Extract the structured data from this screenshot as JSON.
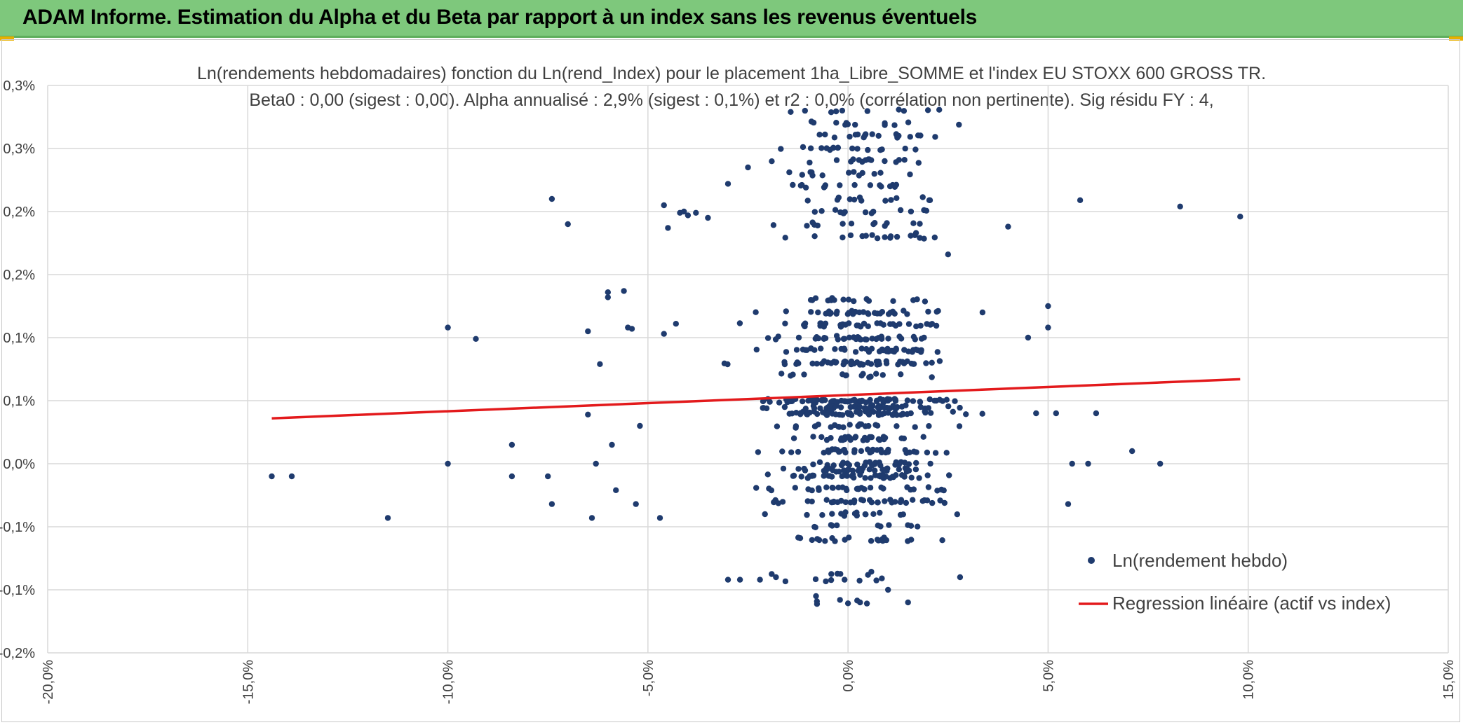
{
  "header": {
    "title": "ADAM Informe. Estimation du Alpha et du Beta par rapport à un index sans les revenus éventuels"
  },
  "colors": {
    "header_bg": "#7ec87c",
    "points": "#1f3b6e",
    "regression": "#e31a1c",
    "grid": "#d9d9d9",
    "text": "#404040"
  },
  "chart_data": {
    "type": "scatter",
    "title": [
      "Ln(rendements hebdomadaires) fonction du Ln(rend_Index) pour le placement 1ha_Libre_SOMME et l'index EU STOXX 600 GROSS TR.",
      "Beta0 : 0,00 (sigest : 0,00). Alpha annualisé : 2,9% (sigest : 0,1%) et r2 : 0,0% (corrélation non pertinente). Sig résidu FY : 4,"
    ],
    "xlabel": "",
    "ylabel": "",
    "xlim": [
      -0.2,
      0.15
    ],
    "ylim": [
      -0.0015,
      0.003
    ],
    "x_ticks": [
      {
        "value": -0.2,
        "label": "-20,0%"
      },
      {
        "value": -0.15,
        "label": "-15,0%"
      },
      {
        "value": -0.1,
        "label": "-10,0%"
      },
      {
        "value": -0.05,
        "label": "-5,0%"
      },
      {
        "value": 0.0,
        "label": "0,0%"
      },
      {
        "value": 0.05,
        "label": "5,0%"
      },
      {
        "value": 0.1,
        "label": "10,0%"
      },
      {
        "value": 0.15,
        "label": "15,0%"
      }
    ],
    "y_ticks": [
      {
        "value": 0.003,
        "label": "0,3%"
      },
      {
        "value": 0.0025,
        "label": "0,3%"
      },
      {
        "value": 0.002,
        "label": "0,2%"
      },
      {
        "value": 0.0015,
        "label": "0,2%"
      },
      {
        "value": 0.001,
        "label": "0,1%"
      },
      {
        "value": 0.0005,
        "label": "0,1%"
      },
      {
        "value": 0.0,
        "label": "0,0%"
      },
      {
        "value": -0.0005,
        "label": "-0,1%"
      },
      {
        "value": -0.001,
        "label": "-0,1%"
      },
      {
        "value": -0.0015,
        "label": "-0,2%"
      }
    ],
    "grid": true,
    "legend_position": "bottom-right",
    "series": [
      {
        "name": "Ln(rendement hebdo)",
        "type": "scatter",
        "levels": [
          -0.0011,
          -0.00092,
          -0.00087,
          -0.0006,
          -0.0005,
          -0.0004,
          -0.0003,
          -0.0002,
          -0.0001,
          -5e-05,
          0.0,
          0.0001,
          0.0002,
          0.0003,
          0.0004,
          0.00045,
          0.0005,
          0.0007,
          0.0008,
          0.0009,
          0.001,
          0.0011,
          0.0012,
          0.0013,
          0.0018,
          0.0019,
          0.002,
          0.0021,
          0.0022,
          0.0023,
          0.0024,
          0.0025,
          0.0026,
          0.0027,
          0.0028
        ],
        "points": [
          [
            -0.144,
            -0.0001
          ],
          [
            -0.139,
            -0.0001
          ],
          [
            -0.115,
            -0.00043
          ],
          [
            -0.1,
            0.0
          ],
          [
            -0.1,
            0.00108
          ],
          [
            -0.093,
            0.00099
          ],
          [
            -0.084,
            -0.0001
          ],
          [
            -0.084,
            0.00015
          ],
          [
            -0.075,
            -0.0001
          ],
          [
            -0.074,
            -0.00032
          ],
          [
            -0.074,
            0.0021
          ],
          [
            -0.07,
            0.0019
          ],
          [
            -0.065,
            0.00039
          ],
          [
            -0.065,
            0.00105
          ],
          [
            -0.064,
            -0.00043
          ],
          [
            -0.063,
            0.0
          ],
          [
            -0.062,
            0.00079
          ],
          [
            -0.06,
            0.00132
          ],
          [
            -0.06,
            0.00136
          ],
          [
            -0.059,
            0.00015
          ],
          [
            -0.058,
            -0.00021
          ],
          [
            -0.056,
            0.00137
          ],
          [
            -0.055,
            0.00108
          ],
          [
            -0.054,
            0.00107
          ],
          [
            -0.053,
            -0.00032
          ],
          [
            -0.052,
            0.0003
          ],
          [
            -0.047,
            -0.00043
          ],
          [
            -0.046,
            0.00103
          ],
          [
            -0.046,
            0.00205
          ],
          [
            -0.045,
            0.00187
          ],
          [
            -0.043,
            0.00111
          ],
          [
            -0.042,
            0.00199
          ],
          [
            -0.041,
            0.002
          ],
          [
            -0.04,
            0.00197
          ],
          [
            -0.038,
            0.00199
          ],
          [
            -0.035,
            0.00195
          ],
          [
            -0.03,
            0.00222
          ],
          [
            -0.025,
            0.00235
          ],
          [
            0.017,
            0.00183
          ],
          [
            0.04,
            0.00188
          ],
          [
            0.045,
            0.001
          ],
          [
            0.05,
            0.00125
          ],
          [
            0.05,
            0.00108
          ],
          [
            0.058,
            0.00209
          ],
          [
            0.062,
            0.0004
          ],
          [
            0.071,
            0.0001
          ],
          [
            0.078,
            0.0
          ],
          [
            0.083,
            0.00204
          ],
          [
            0.098,
            0.00196
          ],
          [
            0.047,
            0.0004
          ],
          [
            0.052,
            0.0004
          ],
          [
            0.055,
            -0.00032
          ],
          [
            0.056,
            0.0
          ],
          [
            0.06,
            0.0
          ],
          [
            0.025,
            0.00166
          ],
          [
            -0.027,
            -0.00092
          ],
          [
            -0.03,
            -0.00092
          ],
          [
            -0.022,
            -0.00092
          ],
          [
            -0.018,
            -0.0009
          ],
          [
            0.028,
            -0.0009
          ],
          [
            -0.008,
            -0.00105
          ],
          [
            -0.002,
            -0.00108
          ],
          [
            0.003,
            -0.0011
          ],
          [
            0.015,
            -0.0011
          ],
          [
            0.01,
            -0.001
          ]
        ]
      },
      {
        "name": "Regression linéaire (actif vs index)",
        "type": "line",
        "x": [
          -0.144,
          0.098
        ],
        "y": [
          0.00036,
          0.00067
        ]
      }
    ]
  }
}
